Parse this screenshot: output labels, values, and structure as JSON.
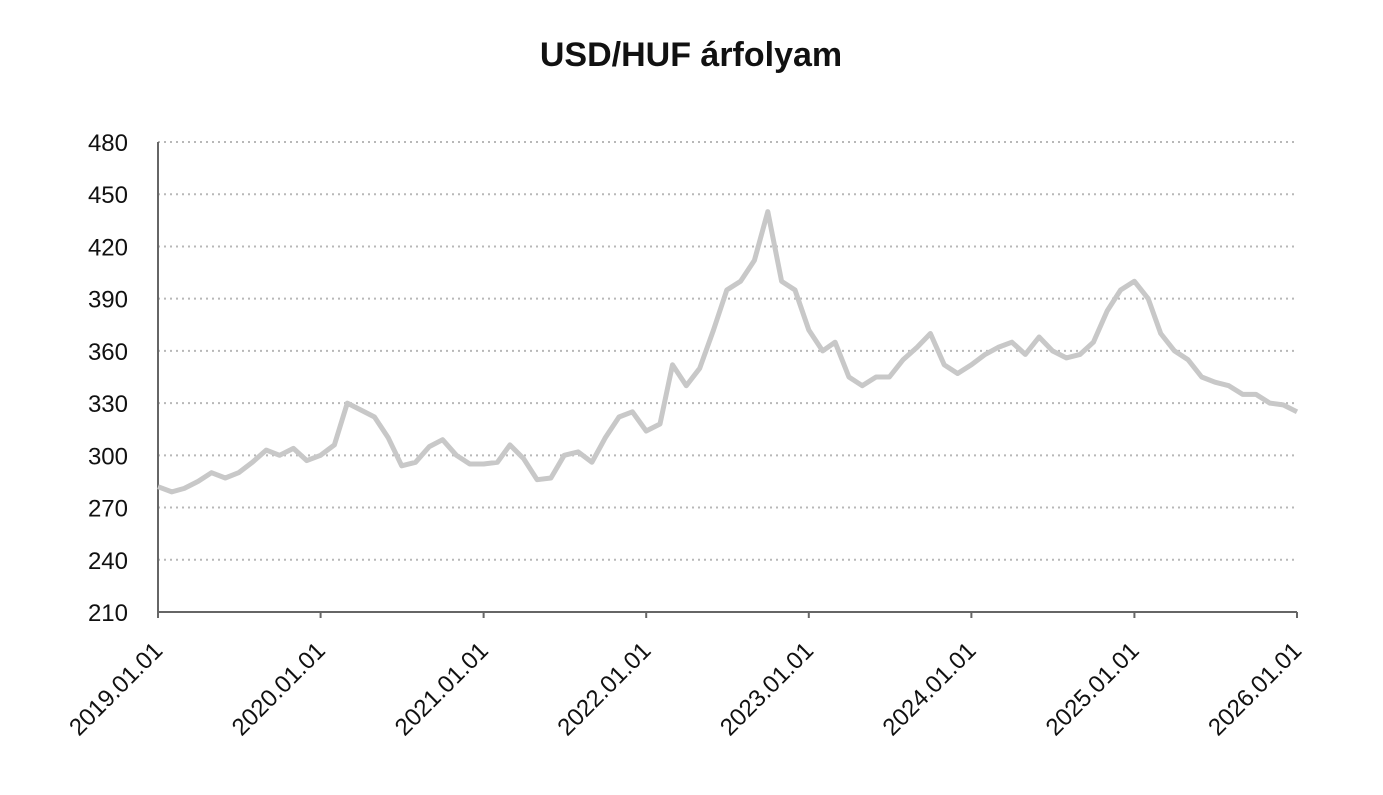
{
  "chart_data": {
    "type": "line",
    "title": "USD/HUF árfolyam",
    "x": [
      "2019.01.01",
      "2019.02.01",
      "2019.03.01",
      "2019.04.01",
      "2019.05.01",
      "2019.06.01",
      "2019.07.01",
      "2019.08.01",
      "2019.09.01",
      "2019.10.01",
      "2019.11.01",
      "2019.12.01",
      "2020.01.01",
      "2020.02.01",
      "2020.03.01",
      "2020.04.01",
      "2020.05.01",
      "2020.06.01",
      "2020.07.01",
      "2020.08.01",
      "2020.09.01",
      "2020.10.01",
      "2020.11.01",
      "2020.12.01",
      "2021.01.01",
      "2021.02.01",
      "2021.03.01",
      "2021.04.01",
      "2021.05.01",
      "2021.06.01",
      "2021.07.01",
      "2021.08.01",
      "2021.09.01",
      "2021.10.01",
      "2021.11.01",
      "2021.12.01",
      "2022.01.01",
      "2022.02.01",
      "2022.03.01",
      "2022.04.01",
      "2022.05.01",
      "2022.06.01",
      "2022.07.01",
      "2022.08.01",
      "2022.09.01",
      "2022.10.01",
      "2022.11.01",
      "2022.12.01",
      "2023.01.01",
      "2023.02.01",
      "2023.03.01",
      "2023.04.01",
      "2023.05.01",
      "2023.06.01",
      "2023.07.01",
      "2023.08.01",
      "2023.09.01",
      "2023.10.01",
      "2023.11.01",
      "2023.12.01",
      "2024.01.01",
      "2024.02.01",
      "2024.03.01",
      "2024.04.01",
      "2024.05.01",
      "2024.06.01",
      "2024.07.01",
      "2024.08.01",
      "2024.09.01",
      "2024.10.01",
      "2024.11.01",
      "2024.12.01",
      "2025.01.01",
      "2025.02.01",
      "2025.03.01",
      "2025.04.01",
      "2025.05.01",
      "2025.06.01",
      "2025.07.01",
      "2025.08.01",
      "2025.09.01",
      "2025.10.01",
      "2025.11.01",
      "2025.12.01",
      "2026.01.01"
    ],
    "series": [
      {
        "name": "USD/HUF",
        "color": "#c8c8c8",
        "values": [
          282,
          279,
          281,
          285,
          290,
          287,
          290,
          296,
          303,
          300,
          304,
          297,
          300,
          306,
          330,
          326,
          322,
          310,
          294,
          296,
          305,
          309,
          300,
          295,
          295,
          296,
          306,
          298,
          286,
          287,
          300,
          302,
          296,
          310,
          322,
          325,
          314,
          318,
          352,
          340,
          350,
          372,
          395,
          400,
          412,
          440,
          400,
          395,
          372,
          360,
          365,
          345,
          340,
          345,
          345,
          355,
          362,
          370,
          352,
          347,
          352,
          358,
          362,
          365,
          358,
          368,
          360,
          356,
          358,
          365,
          383,
          395,
          400,
          390,
          370,
          360,
          355,
          345,
          342,
          340,
          335,
          335,
          330,
          329,
          325
        ]
      }
    ],
    "xlim": [
      "2019.01.01",
      "2026.01.01"
    ],
    "xticks": [
      "2019.01.01",
      "2020.01.01",
      "2021.01.01",
      "2022.01.01",
      "2023.01.01",
      "2024.01.01",
      "2025.01.01",
      "2026.01.01"
    ],
    "ylim": [
      210,
      480
    ],
    "yticks": [
      210,
      240,
      270,
      300,
      330,
      360,
      390,
      420,
      450,
      480
    ],
    "grid": true
  }
}
